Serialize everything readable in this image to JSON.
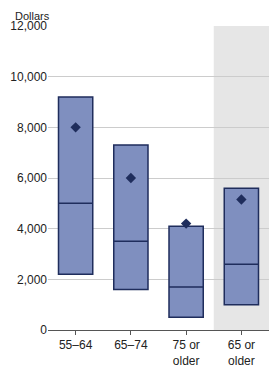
{
  "chart_data": {
    "type": "box",
    "ylabel": "Dollars",
    "categories": [
      "55–64",
      "65–74",
      "75 or older",
      "65 or older"
    ],
    "low": [
      2200,
      1600,
      500,
      1000
    ],
    "median": [
      5000,
      3500,
      1700,
      2600
    ],
    "high": [
      9200,
      7300,
      4100,
      5600
    ],
    "mean": [
      8000,
      6000,
      4200,
      5150
    ],
    "color": "#7f8fbf",
    "marker": "diamond",
    "ylim": [
      0,
      12000
    ],
    "yticks": [
      0,
      {
        "value": 2000,
        "label": "2,000"
      },
      {
        "value": 4000,
        "label": "4,000"
      },
      {
        "value": 6000,
        "label": "6,000"
      },
      {
        "value": 8000,
        "label": "8,000"
      },
      {
        "value": 10000,
        "label": "10,000"
      },
      {
        "value": 12000,
        "label": "12,000"
      }
    ],
    "grid": true
  }
}
